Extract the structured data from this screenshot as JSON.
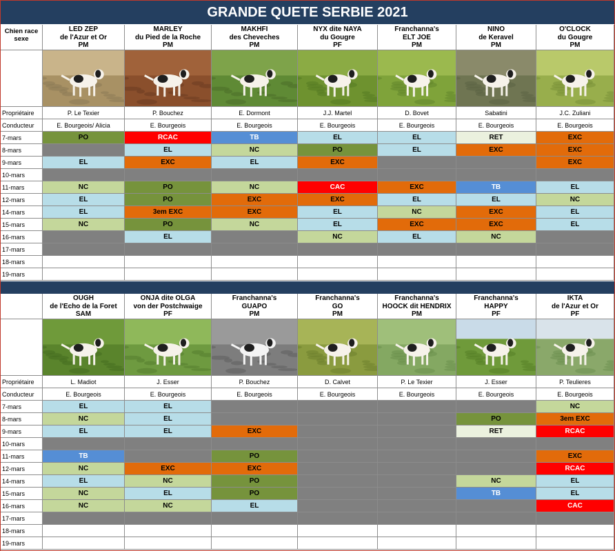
{
  "title": "GRANDE QUETE SERBIE 2021",
  "row_labels": {
    "header": "Chien race sexe",
    "owner": "Propriétaire",
    "handler": "Conducteur"
  },
  "dates": [
    "7-mars",
    "8-mars",
    "9-mars",
    "10-mars",
    "11-mars",
    "12-mars",
    "14-mars",
    "15-mars",
    "16-mars",
    "17-mars",
    "18-mars",
    "19-mars"
  ],
  "colors": {
    "PO": "#76933c",
    "EL": "#b7dde8",
    "NC": "#c4d79b",
    "EXC": "#e26b0a",
    "CAC": "#ff0000",
    "RCAC": "#ff0000",
    "TB": "#558ed5",
    "RET": "#ebf1de",
    "3em EXC": "#e26b0a",
    "GREY": "#808080",
    "EMPTY": "#ffffff",
    "header_bg": "#243f60"
  },
  "sections": [
    {
      "dogs": [
        {
          "name": "LED ZEP",
          "line2": "de l'Azur et Or",
          "sex": "PM",
          "owner": "P. Le Texier",
          "handler": "E. Bourgeois/ Alicia",
          "photo": "dog-running-field",
          "results": [
            "PO",
            "GREY",
            "EL",
            "GREY",
            "NC",
            "EL",
            "EL",
            "NC",
            "GREY",
            "GREY",
            "",
            ""
          ]
        },
        {
          "name": "MARLEY",
          "line2": "du Pied de la Roche",
          "sex": "PM",
          "owner": "P. Bouchez",
          "handler": "E. Bourgeois",
          "photo": "dog-galloping",
          "results": [
            "RCAC",
            "EL",
            "EXC",
            "GREY",
            "PO",
            "PO",
            "3em EXC",
            "PO",
            "EL",
            "GREY",
            "",
            ""
          ]
        },
        {
          "name": "MAKHFI",
          "line2": "des Cheveches",
          "sex": "PM",
          "owner": "E. Dormont",
          "handler": "E. Bourgeois",
          "photo": "dog-running-grass",
          "results": [
            "TB",
            "NC",
            "EL",
            "GREY",
            "NC",
            "EXC",
            "EXC",
            "NC",
            "GREY",
            "GREY",
            "",
            ""
          ]
        },
        {
          "name": "NYX dite NAYA",
          "line2": "du Gougre",
          "sex": "PF",
          "owner": "J.J. Martel",
          "handler": "E. Bourgeois",
          "photo": "dog-standing-crop",
          "results": [
            "EL",
            "PO",
            "EXC",
            "GREY",
            "CAC",
            "EXC",
            "EL",
            "EL",
            "NC",
            "GREY",
            "",
            ""
          ]
        },
        {
          "name": "Franchanna's",
          "line2": "ELT JOE",
          "sex": "PM",
          "owner": "D. Bovet",
          "handler": "E. Bourgeois",
          "photo": "dog-pointing-crop",
          "results": [
            "EL",
            "EL",
            "GREY",
            "GREY",
            "EXC",
            "EL",
            "NC",
            "EXC",
            "EL",
            "GREY",
            "",
            ""
          ]
        },
        {
          "name": "NINO",
          "line2": "de Keravel",
          "sex": "PM",
          "owner": "Sabatini",
          "handler": "E. Bourgeois",
          "photo": "dog-in-meadow",
          "results": [
            "RET",
            "EXC",
            "GREY",
            "GREY",
            "TB",
            "EL",
            "EXC",
            "EXC",
            "NC",
            "GREY",
            "",
            ""
          ]
        },
        {
          "name": "O'CLOCK",
          "line2": "du Gougre",
          "sex": "PM",
          "owner": "J.C. Zuliani",
          "handler": "E. Bourgeois",
          "photo": "dog-sitting-field",
          "results": [
            "EXC",
            "EXC",
            "EXC",
            "GREY",
            "EL",
            "NC",
            "EL",
            "EL",
            "GREY",
            "GREY",
            "",
            ""
          ]
        }
      ]
    },
    {
      "dogs": [
        {
          "name": "OUGH",
          "line2": "de l'Echo de la Foret",
          "sex": "SAM",
          "owner": "L. Madiot",
          "handler": "E. Bourgeois",
          "photo": "dog-lying-grass",
          "results": [
            "EL",
            "NC",
            "EL",
            "GREY",
            "TB",
            "NC",
            "EL",
            "NC",
            "NC",
            "GREY",
            "",
            ""
          ]
        },
        {
          "name": "ONJA dite OLGA",
          "line2": "von der Postchwaige",
          "sex": "PF",
          "owner": "J. Esser",
          "handler": "E. Bourgeois",
          "photo": "dog-in-bushes",
          "results": [
            "EL",
            "EL",
            "EL",
            "GREY",
            "GREY",
            "EXC",
            "NC",
            "EL",
            "NC",
            "GREY",
            "",
            ""
          ]
        },
        {
          "name": "Franchanna's",
          "line2": "GUAPO",
          "sex": "PM",
          "owner": "P. Bouchez",
          "handler": "E. Bourgeois",
          "photo": "dog-pointing-bw",
          "results": [
            "GREY",
            "GREY",
            "EXC",
            "GREY",
            "PO",
            "EXC",
            "PO",
            "PO",
            "EL",
            "GREY",
            "",
            ""
          ]
        },
        {
          "name": "Franchanna's",
          "line2": "GO",
          "sex": "PM",
          "owner": "D. Calvet",
          "handler": "E. Bourgeois",
          "photo": "dog-pointing-green",
          "results": [
            "GREY",
            "GREY",
            "GREY",
            "GREY",
            "GREY",
            "GREY",
            "GREY",
            "GREY",
            "GREY",
            "GREY",
            "",
            ""
          ]
        },
        {
          "name": "Franchanna's",
          "line2": "HOOCK dit HENDRIX",
          "sex": "PM",
          "owner": "P. Le Texier",
          "handler": "E. Bourgeois",
          "photo": "dog-small-meadow",
          "results": [
            "GREY",
            "GREY",
            "GREY",
            "GREY",
            "GREY",
            "GREY",
            "GREY",
            "GREY",
            "GREY",
            "GREY",
            "",
            ""
          ]
        },
        {
          "name": "Franchanna's",
          "line2": "HAPPY",
          "sex": "PF",
          "owner": "J. Esser",
          "handler": "E. Bourgeois",
          "photo": "dog-standing-field",
          "results": [
            "GREY",
            "PO",
            "RET",
            "GREY",
            "GREY",
            "GREY",
            "NC",
            "TB",
            "GREY",
            "GREY",
            "",
            ""
          ]
        },
        {
          "name": "IKTA",
          "line2": "de l'Azur et Or",
          "sex": "PF",
          "owner": "P. Teulieres",
          "handler": "E. Bourgeois",
          "photo": "dog-standing-sky",
          "results": [
            "NC",
            "3em EXC",
            "RCAC",
            "GREY",
            "EXC",
            "RCAC",
            "EL",
            "EL",
            "CAC",
            "GREY",
            "",
            ""
          ]
        }
      ]
    }
  ]
}
